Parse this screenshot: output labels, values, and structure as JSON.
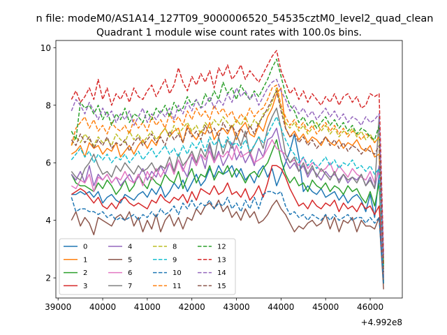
{
  "chart_data": {
    "type": "line",
    "suptitle": "n file: modeM0/AS1A14_127T09_9000006520_54535cztM0_level2_quad_clean",
    "title": "Quadrant 1 module wise count rates with 100.0s bins.",
    "xlabel": "",
    "ylabel": "",
    "x_offset_label": "+4.992e8",
    "xlim": [
      38950,
      46720
    ],
    "ylim": [
      1.3,
      10.25
    ],
    "x_ticks": [
      39000,
      40000,
      41000,
      42000,
      43000,
      44000,
      45000,
      46000
    ],
    "x_tick_labels": [
      "39000",
      "40000",
      "41000",
      "42000",
      "43000",
      "44000",
      "45000",
      "46000"
    ],
    "y_ticks": [
      2,
      4,
      6,
      8,
      10
    ],
    "y_tick_labels": [
      "2",
      "4",
      "6",
      "8",
      "10"
    ],
    "grid": false,
    "legend_position": "lower-left",
    "legend_columns": 4,
    "x_start": 39300,
    "x_step": 100,
    "series": [
      {
        "name": "0",
        "color": "#1f77b4",
        "dash": "solid",
        "values": [
          4.9,
          4.9,
          5.0,
          4.9,
          5.0,
          4.8,
          5.0,
          4.6,
          4.8,
          4.9,
          4.7,
          4.6,
          4.9,
          4.8,
          4.7,
          4.9,
          5.0,
          4.8,
          5.1,
          4.9,
          5.2,
          4.8,
          5.0,
          5.3,
          5.1,
          5.4,
          5.0,
          5.3,
          5.6,
          5.2,
          5.4,
          5.8,
          5.5,
          5.9,
          5.6,
          5.7,
          5.9,
          5.5,
          5.8,
          5.4,
          5.6,
          5.3,
          5.7,
          5.9,
          5.5,
          5.8,
          5.2,
          5.6,
          6.0,
          6.4,
          7.0,
          6.2,
          5.0,
          5.2,
          5.0,
          4.9,
          5.1,
          4.8,
          4.9,
          5.0,
          4.7,
          4.9,
          4.6,
          4.8,
          4.9,
          4.7,
          4.3,
          4.9,
          4.1,
          5.6,
          1.9
        ]
      },
      {
        "name": "1",
        "color": "#ff7f0e",
        "dash": "solid",
        "values": [
          6.3,
          6.4,
          6.6,
          6.2,
          6.7,
          6.5,
          6.6,
          6.3,
          6.5,
          6.4,
          6.7,
          6.2,
          6.4,
          6.6,
          6.3,
          6.6,
          6.8,
          6.5,
          6.8,
          6.6,
          7.0,
          7.2,
          6.9,
          7.1,
          7.2,
          6.7,
          7.3,
          7.0,
          6.8,
          7.1,
          7.0,
          7.4,
          6.8,
          7.1,
          7.2,
          7.0,
          7.3,
          6.8,
          7.2,
          7.4,
          7.0,
          6.9,
          7.3,
          7.1,
          7.6,
          7.9,
          8.4,
          8.6,
          7.2,
          6.9,
          7.1,
          6.8,
          7.0,
          6.7,
          6.9,
          6.8,
          6.6,
          6.9,
          6.7,
          6.6,
          6.8,
          6.5,
          6.7,
          6.6,
          6.8,
          6.5,
          6.4,
          6.6,
          6.2,
          6.3,
          2.6
        ]
      },
      {
        "name": "2",
        "color": "#2ca02c",
        "dash": "solid",
        "values": [
          5.6,
          5.3,
          5.2,
          5.2,
          5.1,
          5.0,
          5.3,
          5.1,
          5.4,
          5.2,
          4.9,
          5.1,
          5.4,
          5.0,
          5.2,
          5.6,
          5.3,
          5.1,
          5.5,
          5.3,
          5.2,
          5.6,
          5.4,
          5.3,
          5.7,
          5.1,
          5.5,
          5.8,
          5.3,
          5.6,
          5.5,
          5.9,
          5.4,
          5.7,
          5.6,
          5.9,
          5.5,
          5.8,
          5.6,
          5.3,
          5.6,
          5.7,
          5.5,
          5.8,
          6.0,
          6.4,
          6.8,
          6.1,
          5.6,
          5.3,
          5.5,
          5.2,
          5.3,
          5.0,
          5.4,
          5.2,
          5.1,
          5.3,
          5.0,
          5.2,
          5.1,
          4.9,
          5.2,
          5.0,
          5.1,
          4.8,
          4.6,
          5.0,
          4.5,
          5.3,
          1.8
        ]
      },
      {
        "name": "3",
        "color": "#d62728",
        "dash": "solid",
        "values": [
          4.9,
          5.0,
          5.1,
          5.0,
          4.8,
          4.6,
          4.8,
          4.5,
          4.4,
          4.6,
          4.4,
          4.7,
          4.8,
          4.6,
          4.5,
          4.6,
          4.5,
          4.4,
          4.7,
          4.6,
          4.9,
          4.7,
          4.6,
          4.8,
          4.7,
          4.9,
          4.6,
          5.0,
          4.7,
          5.1,
          5.0,
          4.9,
          5.2,
          4.9,
          5.0,
          5.3,
          4.9,
          5.0,
          4.8,
          5.1,
          4.7,
          4.9,
          5.2,
          4.8,
          5.3,
          5.9,
          5.9,
          5.8,
          5.5,
          5.1,
          4.8,
          4.5,
          4.6,
          4.4,
          4.7,
          4.5,
          4.4,
          4.6,
          4.5,
          4.7,
          4.3,
          4.6,
          4.4,
          4.5,
          4.3,
          4.6,
          4.4,
          4.5,
          4.2,
          4.5,
          2.0
        ]
      },
      {
        "name": "4",
        "color": "#9467bd",
        "dash": "solid",
        "values": [
          5.6,
          5.4,
          5.7,
          5.3,
          5.9,
          5.2,
          5.6,
          5.4,
          5.6,
          5.3,
          5.5,
          5.2,
          5.4,
          5.6,
          5.3,
          5.5,
          5.8,
          5.4,
          5.7,
          5.5,
          5.9,
          5.6,
          6.0,
          5.7,
          6.1,
          5.8,
          5.5,
          6.2,
          5.9,
          6.3,
          5.8,
          6.6,
          6.0,
          6.4,
          5.9,
          6.2,
          6.7,
          6.1,
          6.4,
          6.0,
          6.3,
          5.9,
          6.5,
          6.2,
          6.8,
          6.9,
          7.2,
          6.5,
          6.1,
          5.8,
          6.0,
          5.7,
          5.9,
          5.5,
          5.8,
          5.6,
          5.4,
          5.7,
          5.5,
          5.6,
          5.4,
          5.6,
          5.3,
          5.5,
          5.4,
          5.6,
          5.2,
          5.5,
          5.1,
          5.9,
          2.1
        ]
      },
      {
        "name": "5",
        "color": "#8c564b",
        "dash": "solid",
        "values": [
          4.0,
          4.3,
          3.8,
          4.1,
          3.9,
          3.5,
          4.1,
          4.0,
          3.9,
          3.8,
          4.1,
          4.2,
          4.0,
          4.3,
          3.8,
          4.1,
          3.6,
          4.0,
          3.7,
          4.2,
          3.6,
          4.0,
          4.2,
          3.8,
          4.1,
          3.7,
          4.1,
          4.0,
          4.4,
          4.2,
          4.5,
          4.6,
          4.4,
          4.7,
          4.3,
          4.5,
          4.1,
          4.3,
          4.0,
          4.4,
          4.1,
          4.3,
          3.9,
          4.0,
          4.2,
          4.5,
          4.7,
          4.4,
          4.2,
          3.9,
          3.6,
          3.8,
          3.7,
          3.9,
          4.0,
          3.8,
          3.9,
          4.2,
          3.7,
          4.1,
          3.6,
          4.0,
          3.9,
          4.1,
          3.6,
          4.0,
          3.8,
          3.8,
          3.7,
          4.1,
          1.6
        ]
      },
      {
        "name": "6",
        "color": "#e377c2",
        "dash": "solid",
        "values": [
          5.2,
          5.1,
          5.4,
          5.3,
          5.6,
          5.0,
          5.5,
          5.4,
          5.6,
          5.3,
          5.5,
          5.4,
          5.7,
          5.4,
          5.3,
          5.6,
          5.2,
          5.7,
          5.4,
          5.8,
          5.5,
          5.8,
          6.0,
          5.6,
          6.1,
          5.7,
          6.1,
          6.3,
          5.9,
          6.3,
          6.1,
          6.4,
          6.0,
          6.3,
          6.2,
          6.4,
          6.1,
          6.6,
          6.2,
          6.3,
          6.4,
          6.0,
          6.1,
          6.2,
          6.5,
          6.8,
          6.5,
          6.4,
          6.3,
          6.0,
          6.1,
          5.9,
          6.2,
          5.8,
          6.0,
          5.9,
          5.7,
          5.8,
          6.0,
          5.6,
          5.9,
          5.7,
          5.5,
          5.8,
          5.6,
          5.5,
          5.4,
          5.7,
          5.3,
          5.7,
          2.0
        ]
      },
      {
        "name": "7",
        "color": "#7f7f7f",
        "dash": "solid",
        "values": [
          5.7,
          5.5,
          5.4,
          5.8,
          6.0,
          6.3,
          5.9,
          5.6,
          5.7,
          5.5,
          5.9,
          5.7,
          6.0,
          5.8,
          5.6,
          5.9,
          5.7,
          5.8,
          6.0,
          5.7,
          5.9,
          5.8,
          6.2,
          5.7,
          6.3,
          5.9,
          6.1,
          6.4,
          6.0,
          6.5,
          6.2,
          6.7,
          6.1,
          6.9,
          6.3,
          6.8,
          6.5,
          7.0,
          6.6,
          7.1,
          6.3,
          6.6,
          6.9,
          6.5,
          7.2,
          7.6,
          7.9,
          7.2,
          6.3,
          6.0,
          6.2,
          5.7,
          6.0,
          5.6,
          5.9,
          5.5,
          5.8,
          5.6,
          5.4,
          5.7,
          5.3,
          5.6,
          5.4,
          5.5,
          5.3,
          5.6,
          5.2,
          5.4,
          5.1,
          7.6,
          1.9
        ]
      },
      {
        "name": "8",
        "color": "#bcbd22",
        "dash": "dashed",
        "values": [
          6.6,
          6.9,
          6.7,
          7.0,
          6.8,
          6.6,
          6.9,
          6.7,
          6.8,
          6.6,
          7.0,
          6.8,
          6.7,
          7.1,
          6.8,
          7.0,
          6.7,
          6.9,
          7.1,
          6.8,
          7.0,
          7.2,
          6.9,
          7.3,
          7.0,
          7.2,
          7.4,
          7.1,
          7.3,
          7.0,
          7.4,
          7.2,
          7.5,
          7.3,
          7.6,
          7.4,
          7.2,
          7.5,
          7.3,
          7.6,
          7.2,
          7.5,
          7.3,
          7.7,
          7.8,
          8.1,
          8.6,
          7.9,
          7.4,
          7.2,
          7.4,
          7.1,
          7.3,
          7.0,
          7.2,
          7.4,
          7.1,
          7.3,
          7.0,
          7.2,
          6.9,
          7.1,
          7.0,
          7.2,
          6.9,
          7.1,
          6.8,
          7.0,
          6.7,
          6.9,
          2.4
        ]
      },
      {
        "name": "9",
        "color": "#17becf",
        "dash": "dashed",
        "values": [
          6.1,
          6.3,
          6.5,
          6.2,
          6.4,
          6.0,
          6.3,
          6.1,
          6.3,
          6.0,
          6.2,
          6.1,
          6.3,
          6.0,
          6.2,
          6.4,
          6.1,
          6.3,
          6.5,
          6.2,
          6.4,
          6.6,
          6.3,
          6.5,
          6.2,
          6.6,
          6.3,
          6.7,
          6.5,
          6.8,
          6.4,
          6.9,
          6.6,
          6.8,
          6.5,
          6.9,
          6.6,
          6.7,
          6.5,
          6.8,
          6.4,
          6.6,
          6.9,
          6.7,
          7.0,
          7.3,
          7.6,
          7.2,
          6.8,
          6.5,
          6.3,
          6.0,
          6.2,
          5.9,
          6.1,
          5.8,
          6.0,
          6.2,
          5.9,
          6.1,
          5.8,
          6.0,
          5.9,
          6.1,
          5.8,
          5.9,
          5.7,
          5.9,
          5.6,
          5.8,
          2.3
        ]
      },
      {
        "name": "10",
        "color": "#1f77b4",
        "dash": "dashed",
        "values": [
          4.8,
          4.3,
          4.4,
          4.4,
          4.3,
          4.3,
          4.2,
          4.3,
          4.1,
          4.2,
          4.0,
          4.1,
          4.0,
          4.1,
          4.2,
          4.0,
          4.2,
          4.1,
          4.3,
          4.1,
          4.4,
          4.2,
          4.3,
          4.5,
          4.2,
          4.6,
          4.4,
          4.7,
          4.4,
          4.6,
          4.5,
          4.7,
          4.4,
          4.6,
          4.5,
          4.8,
          4.4,
          4.6,
          4.3,
          4.7,
          4.4,
          4.8,
          4.4,
          4.9,
          5.0,
          5.0,
          4.9,
          5.0,
          4.5,
          4.2,
          4.3,
          4.1,
          4.2,
          4.0,
          4.2,
          4.1,
          4.0,
          4.2,
          4.0,
          4.2,
          4.0,
          4.1,
          4.2,
          4.0,
          4.1,
          4.1,
          3.9,
          4.1,
          3.9,
          4.1,
          1.8
        ]
      },
      {
        "name": "11",
        "color": "#ff7f0e",
        "dash": "dashed",
        "values": [
          6.6,
          7.2,
          7.4,
          7.6,
          7.2,
          7.5,
          7.1,
          7.3,
          7.0,
          7.4,
          7.2,
          7.1,
          7.3,
          7.0,
          7.5,
          7.2,
          7.4,
          7.1,
          7.6,
          7.3,
          7.5,
          7.2,
          7.7,
          7.4,
          7.6,
          7.3,
          7.8,
          7.5,
          7.9,
          7.6,
          7.8,
          7.5,
          8.0,
          7.7,
          7.9,
          7.6,
          7.8,
          7.4,
          7.7,
          7.5,
          7.9,
          7.6,
          7.8,
          7.9,
          8.2,
          8.6,
          8.7,
          8.0,
          7.6,
          7.3,
          7.5,
          7.2,
          7.4,
          7.1,
          7.3,
          7.0,
          7.2,
          7.4,
          7.1,
          7.3,
          7.0,
          7.2,
          6.9,
          7.1,
          7.0,
          6.8,
          7.0,
          6.9,
          6.7,
          6.9,
          2.5
        ]
      },
      {
        "name": "12",
        "color": "#2ca02c",
        "dash": "dashed",
        "values": [
          7.1,
          6.8,
          8.1,
          7.9,
          8.0,
          7.7,
          8.0,
          7.5,
          7.8,
          7.3,
          7.7,
          7.5,
          7.9,
          7.4,
          7.7,
          7.6,
          7.4,
          7.8,
          7.5,
          7.9,
          7.7,
          8.0,
          7.6,
          8.1,
          7.8,
          7.9,
          8.3,
          8.0,
          8.2,
          7.9,
          8.4,
          8.1,
          8.5,
          8.2,
          8.8,
          8.4,
          8.6,
          8.2,
          8.7,
          8.4,
          8.2,
          8.5,
          8.3,
          8.6,
          8.9,
          9.3,
          9.6,
          9.0,
          8.4,
          8.0,
          7.8,
          7.4,
          7.6,
          7.3,
          7.5,
          7.2,
          7.4,
          7.6,
          7.3,
          7.5,
          7.2,
          7.4,
          7.1,
          7.3,
          7.0,
          7.2,
          7.1,
          6.9,
          6.8,
          7.3,
          2.4
        ]
      },
      {
        "name": "13",
        "color": "#d62728",
        "dash": "dashed",
        "values": [
          8.2,
          8.5,
          8.1,
          8.3,
          8.6,
          8.2,
          8.9,
          8.2,
          8.6,
          8.0,
          8.4,
          8.2,
          8.5,
          8.1,
          8.6,
          8.3,
          8.2,
          8.5,
          8.7,
          8.3,
          8.6,
          8.9,
          8.4,
          8.7,
          9.3,
          8.8,
          8.5,
          9.0,
          8.7,
          9.1,
          8.8,
          9.2,
          8.6,
          9.3,
          9.0,
          9.4,
          8.9,
          9.1,
          9.4,
          8.9,
          9.2,
          9.0,
          8.8,
          9.1,
          9.4,
          9.7,
          9.9,
          9.2,
          8.8,
          8.4,
          8.6,
          8.2,
          8.5,
          8.1,
          8.4,
          8.2,
          8.0,
          8.3,
          8.1,
          8.4,
          8.0,
          8.3,
          8.4,
          8.1,
          8.3,
          7.9,
          8.0,
          8.4,
          8.3,
          8.4,
          2.8
        ]
      },
      {
        "name": "14",
        "color": "#9467bd",
        "dash": "dashed",
        "values": [
          7.8,
          8.2,
          8.0,
          7.7,
          8.1,
          7.8,
          7.5,
          7.9,
          7.6,
          7.8,
          7.4,
          7.7,
          7.5,
          7.8,
          7.3,
          7.6,
          7.9,
          7.4,
          7.7,
          7.5,
          7.8,
          7.6,
          7.9,
          7.5,
          8.0,
          7.7,
          8.1,
          7.8,
          8.2,
          7.9,
          8.0,
          8.3,
          7.9,
          8.2,
          8.0,
          8.4,
          8.1,
          8.6,
          8.3,
          8.5,
          8.2,
          8.4,
          8.0,
          8.3,
          8.6,
          8.8,
          8.9,
          8.5,
          8.2,
          7.8,
          8.0,
          7.7,
          7.9,
          7.6,
          7.8,
          7.5,
          7.7,
          7.9,
          7.6,
          7.8,
          7.5,
          7.7,
          7.4,
          7.6,
          7.5,
          7.3,
          7.6,
          7.4,
          7.5,
          7.7,
          2.7
        ]
      },
      {
        "name": "15",
        "color": "#8c564b",
        "dash": "dashed",
        "values": [
          6.8,
          6.6,
          7.0,
          6.7,
          6.9,
          6.5,
          6.8,
          6.6,
          6.9,
          6.5,
          6.7,
          6.6,
          6.8,
          6.4,
          6.7,
          6.9,
          6.6,
          6.8,
          7.0,
          6.7,
          6.9,
          6.6,
          7.1,
          6.8,
          7.0,
          6.7,
          7.2,
          6.9,
          7.1,
          6.8,
          7.3,
          7.0,
          7.2,
          6.9,
          7.4,
          7.1,
          7.3,
          7.0,
          7.2,
          6.9,
          7.3,
          7.0,
          7.4,
          7.6,
          7.9,
          8.2,
          8.5,
          7.8,
          7.2,
          6.9,
          7.0,
          6.7,
          6.9,
          6.6,
          6.8,
          6.5,
          6.7,
          6.9,
          6.6,
          6.8,
          6.5,
          6.7,
          6.4,
          6.6,
          6.5,
          6.3,
          6.5,
          6.4,
          6.3,
          6.6,
          2.2
        ]
      }
    ]
  }
}
